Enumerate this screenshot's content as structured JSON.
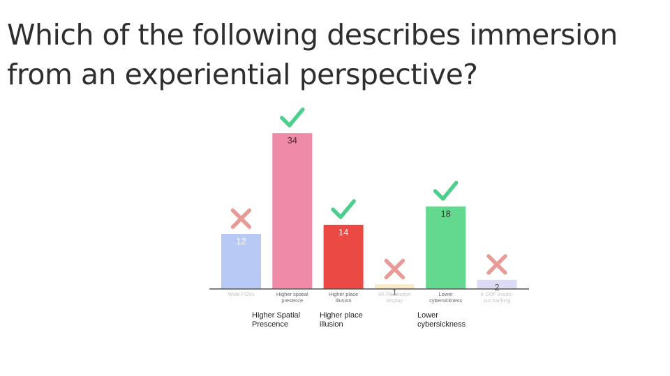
{
  "question": {
    "line1": "Which of the following describes immersion",
    "line2": "from an experiential perspective?"
  },
  "chart_data": {
    "type": "bar",
    "categories": [
      "Wide FOV",
      "Higher spatial presence",
      "Higher place illusion",
      "8K Resolution display",
      "Lower cybersickness",
      "6-DOF inside-out tracking"
    ],
    "category_lines": [
      [
        "Wide FOVs"
      ],
      [
        "Higher spatial",
        "presence"
      ],
      [
        "Higher place",
        "illusion"
      ],
      [
        "8K Resolution",
        "display"
      ],
      [
        "Lower",
        "cybersickness"
      ],
      [
        "6-DOF inside-",
        "out tracking"
      ]
    ],
    "values": [
      12,
      34,
      14,
      1,
      18,
      2
    ],
    "correct": [
      false,
      true,
      true,
      false,
      true,
      false
    ],
    "colors": [
      "#b9c9f5",
      "#ef8aa8",
      "#eb4a44",
      "#fbe8c6",
      "#62d98f",
      "#dcdcf6"
    ],
    "label_colors": [
      "#ffffff",
      "#333333",
      "#ffffff",
      "#555555",
      "#333333",
      "#555555"
    ],
    "category_label_colors": [
      "#c4c4c4",
      "#666666",
      "#666666",
      "#c4c4c4",
      "#666666",
      "#c4c4c4"
    ],
    "mark_colors": {
      "correct": "#4ccf8c",
      "incorrect": "#e89a95"
    },
    "ylim": [
      0,
      36
    ]
  },
  "annotations": [
    {
      "name": "caption-higher-spatial-presence",
      "text": "Higher Spatial\nPrescence"
    },
    {
      "name": "caption-higher-place-illusion",
      "text": "Higher place\nillusion"
    },
    {
      "name": "caption-lower-cybersickness",
      "text": "Lower\ncybersickness"
    }
  ]
}
